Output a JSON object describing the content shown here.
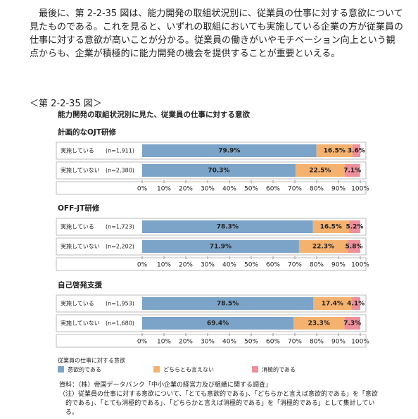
{
  "paragraph": "最後に、第 2-2-35 図は、能力開発の取組状況別に、従業員の仕事に対する意欲について見たものである。これを見ると、いずれの取組においても実施している企業の方が従業員の仕事に対する意欲が高いことが分かる。従業員の働きがいやモチベーション向上という観点からも、企業が積極的に能力開発の機会を提供することが重要といえる。",
  "figure_label": "＜第 2-2-35 図＞",
  "chart_data": {
    "type": "stacked-bar-h",
    "title": "能力開発の取組状況別に見た、従業員の仕事に対する意欲",
    "groups": [
      {
        "name": "計画的なOJT研修",
        "categories": [
          "実施している",
          "実施していない"
        ],
        "notes": [
          "(n=1,911)",
          "(n=2,380)"
        ]
      },
      {
        "name": "OFF-JT研修",
        "categories": [
          "実施している",
          "実施していない"
        ],
        "notes": [
          "(n=1,723)",
          "(n=2,202)"
        ]
      },
      {
        "name": "自己啓発支援",
        "categories": [
          "実施している",
          "実施していない"
        ],
        "notes": [
          "(n=1,953)",
          "(n=1,680)"
        ]
      }
    ],
    "series": [
      {
        "name": "意欲的である",
        "color": "#7ba4c8",
        "values": [
          79.9,
          70.3,
          78.3,
          71.9,
          78.5,
          69.4
        ],
        "value_labels": [
          "79.9%",
          "70.3%",
          "78.3%",
          "71.9%",
          "78.5%",
          "69.4%"
        ]
      },
      {
        "name": "どちらとも言えない",
        "color": "#f5b26e",
        "values": [
          16.5,
          22.5,
          16.5,
          22.3,
          17.4,
          23.3
        ],
        "value_labels": [
          "16.5%",
          "22.5%",
          "16.5%",
          "22.3%",
          "17.4%",
          "23.3%"
        ]
      },
      {
        "name": "消極的である",
        "color": "#ef8f9b",
        "values": [
          3.6,
          7.1,
          5.2,
          5.8,
          4.1,
          7.3
        ],
        "value_labels": [
          "3.6%",
          "7.1%",
          "5.2%",
          "5.8%",
          "4.1%",
          "7.3%"
        ]
      }
    ],
    "xlim": [
      0,
      100
    ],
    "xticks": [
      {
        "value": 0,
        "label": "0%"
      },
      {
        "value": 10,
        "label": "10%"
      },
      {
        "value": 20,
        "label": "20%"
      },
      {
        "value": 30,
        "label": "30%"
      },
      {
        "value": 40,
        "label": "40%"
      },
      {
        "value": 50,
        "label": "50%"
      },
      {
        "value": 60,
        "label": "60%"
      },
      {
        "value": 70,
        "label": "70%"
      },
      {
        "value": 80,
        "label": "80%"
      },
      {
        "value": 90,
        "label": "90%"
      },
      {
        "value": 100,
        "label": "100%"
      }
    ],
    "legend_title": "従業員の仕事に対する意欲"
  },
  "notes": [
    "資料：（株）帝国データバンク「中小企業の経営力及び組織に関する調査」",
    "（注）従業員の仕事に対する意欲について、「とても意欲的である」、「どちらかと言えば意欲的である」を「意欲的である」、「とても消極的である」、「どちらかと言えば消極的である」を「消極的である」として集計している。"
  ]
}
